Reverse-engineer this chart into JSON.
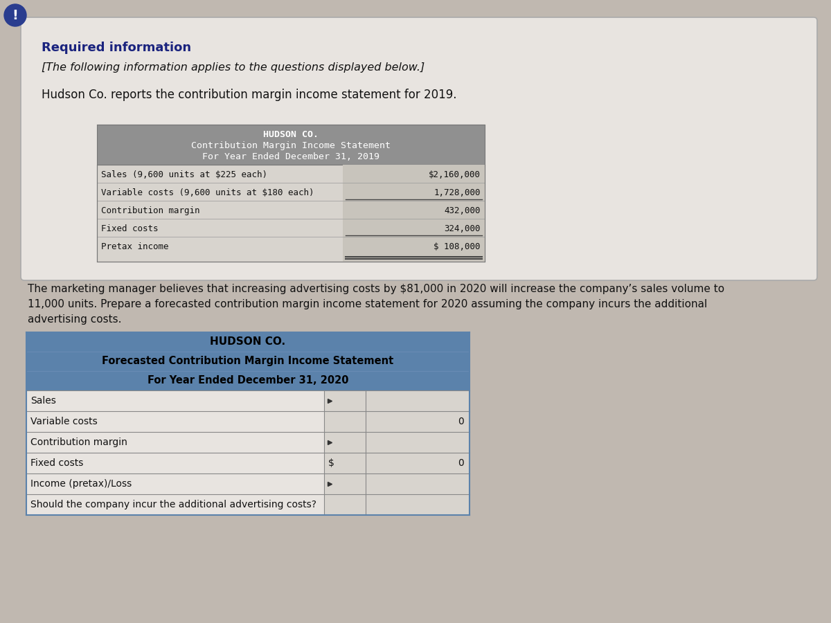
{
  "bg_color": "#c0b8b0",
  "card_bg": "#e8e4e0",
  "card_border": "#aaaaaa",
  "required_info_text": "Required information",
  "bracket_text": "[The following information applies to the questions displayed below.]",
  "intro_text": "Hudson Co. reports the contribution margin income statement for 2019.",
  "marketing_text1": "The marketing manager believes that increasing advertising costs by $81,000 in 2020 will increase the company’s sales volume to",
  "marketing_text2": "11,000 units. Prepare a forecasted contribution margin income statement for 2020 assuming the company incurs the additional",
  "marketing_text3": "advertising costs.",
  "table1_header1": "HUDSON CO.",
  "table1_header2": "Contribution Margin Income Statement",
  "table1_header3": "For Year Ended December 31, 2019",
  "table1_header_bg": "#909090",
  "table1_body_bg": "#d8d4ce",
  "table1_rows": [
    {
      "label": "Sales (9,600 units at $225 each)",
      "value": "$2,160,000"
    },
    {
      "label": "Variable costs (9,600 units at $180 each)",
      "value": "1,728,000"
    },
    {
      "label": "Contribution margin",
      "value": "432,000"
    },
    {
      "label": "Fixed costs",
      "value": "324,000"
    },
    {
      "label": "Pretax income",
      "value": "$ 108,000"
    }
  ],
  "table2_header1": "HUDSON CO.",
  "table2_header2": "Forecasted Contribution Margin Income Statement",
  "table2_header3": "For Year Ended December 31, 2020",
  "table2_header_bg": "#5b82ab",
  "table2_row_bg": "#e8e4e0",
  "table2_rows": [
    {
      "label": "Sales",
      "col1": "",
      "col2": "",
      "has_arrow": true
    },
    {
      "label": "Variable costs",
      "col1": "",
      "col2": "0",
      "has_arrow": false
    },
    {
      "label": "Contribution margin",
      "col1": "",
      "col2": "",
      "has_arrow": true
    },
    {
      "label": "Fixed costs",
      "col1": "$",
      "col2": "0",
      "has_arrow": false
    },
    {
      "label": "Income (pretax)/Loss",
      "col1": "",
      "col2": "",
      "has_arrow": true
    },
    {
      "label": "Should the company incur the additional advertising costs?",
      "col1": "",
      "col2": "",
      "has_arrow": false
    }
  ],
  "required_color": "#1a237e",
  "body_text_color": "#111111",
  "mkt_text_color": "#111111"
}
